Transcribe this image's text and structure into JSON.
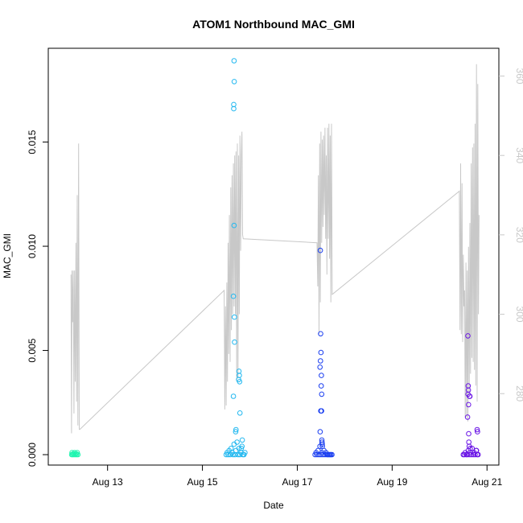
{
  "chart_data": {
    "type": "scatter",
    "title": "ATOM1 Northbound MAC_GMI",
    "xlabel": "Date",
    "ylabel": "MAC_GMI",
    "y2label": "",
    "xlim": [
      "2023-08-11T18:00",
      "2023-08-21T06:00"
    ],
    "ylim": [
      -0.0005,
      0.0195
    ],
    "y2lim": [
      262,
      367
    ],
    "x_ticks": [
      {
        "t": "2023-08-13T00:00",
        "label": "Aug 13"
      },
      {
        "t": "2023-08-15T00:00",
        "label": "Aug 15"
      },
      {
        "t": "2023-08-17T00:00",
        "label": "Aug 17"
      },
      {
        "t": "2023-08-19T00:00",
        "label": "Aug 19"
      },
      {
        "t": "2023-08-21T00:00",
        "label": "Aug 21"
      }
    ],
    "y_ticks": [
      0.0,
      0.005,
      0.01,
      0.015
    ],
    "y_tick_labels": [
      "0.000",
      "0.005",
      "0.010",
      "0.015"
    ],
    "y2_ticks": [
      280,
      300,
      320,
      340,
      360
    ],
    "grid": false,
    "legend": "none",
    "series": [
      {
        "color": "#1ff5b0",
        "points": [
          [
            "2023-08-12T06:00",
            0.0001
          ],
          [
            "2023-08-12T06:20",
            0.0
          ],
          [
            "2023-08-12T06:40",
            5e-05
          ],
          [
            "2023-08-12T07:00",
            0.0
          ],
          [
            "2023-08-12T07:20",
            0.0001
          ],
          [
            "2023-08-12T07:40",
            0.0
          ],
          [
            "2023-08-12T08:00",
            5e-05
          ],
          [
            "2023-08-12T08:20",
            0.0
          ],
          [
            "2023-08-12T08:40",
            0.0001
          ],
          [
            "2023-08-12T09:00",
            0.0
          ],
          [
            "2023-08-12T05:50",
            0.0
          ]
        ]
      },
      {
        "color": "#22b8f0",
        "points": [
          [
            "2023-08-15T12:00",
            0.0
          ],
          [
            "2023-08-15T12:30",
            0.0001
          ],
          [
            "2023-08-15T13:00",
            0.0
          ],
          [
            "2023-08-15T13:30",
            0.0002
          ],
          [
            "2023-08-15T14:00",
            0.0
          ],
          [
            "2023-08-15T14:30",
            0.0003
          ],
          [
            "2023-08-15T15:00",
            0.0001
          ],
          [
            "2023-08-15T15:30",
            0.0
          ],
          [
            "2023-08-15T16:00",
            0.0005
          ],
          [
            "2023-08-15T16:30",
            0.0
          ],
          [
            "2023-08-15T17:00",
            0.0002
          ],
          [
            "2023-08-15T17:30",
            0.0006
          ],
          [
            "2023-08-15T18:00",
            0.0
          ],
          [
            "2023-08-15T18:30",
            0.0003
          ],
          [
            "2023-08-15T19:00",
            0.0
          ],
          [
            "2023-08-15T19:30",
            0.0001
          ],
          [
            "2023-08-15T20:00",
            0.0004
          ],
          [
            "2023-08-15T20:30",
            0.0
          ],
          [
            "2023-08-15T16:00",
            0.0189
          ],
          [
            "2023-08-15T16:05",
            0.0179
          ],
          [
            "2023-08-15T15:50",
            0.0168
          ],
          [
            "2023-08-15T15:52",
            0.0166
          ],
          [
            "2023-08-15T16:00",
            0.011
          ],
          [
            "2023-08-15T15:40",
            0.0076
          ],
          [
            "2023-08-15T16:10",
            0.0066
          ],
          [
            "2023-08-15T16:15",
            0.0054
          ],
          [
            "2023-08-15T18:30",
            0.004
          ],
          [
            "2023-08-15T18:40",
            0.0038
          ],
          [
            "2023-08-15T18:20",
            0.0036
          ],
          [
            "2023-08-15T18:50",
            0.0035
          ],
          [
            "2023-08-15T15:40",
            0.0028
          ],
          [
            "2023-08-15T19:00",
            0.002
          ],
          [
            "2023-08-15T17:00",
            0.0012
          ],
          [
            "2023-08-15T16:50",
            0.0011
          ],
          [
            "2023-08-15T20:10",
            0.0007
          ],
          [
            "2023-08-15T19:40",
            0.0003
          ],
          [
            "2023-08-15T21:00",
            0.0
          ],
          [
            "2023-08-15T21:30",
            0.0001
          ]
        ]
      },
      {
        "color": "#1a3ef0",
        "points": [
          [
            "2023-08-17T09:00",
            0.0
          ],
          [
            "2023-08-17T09:30",
            0.0001
          ],
          [
            "2023-08-17T10:00",
            0.0
          ],
          [
            "2023-08-17T10:30",
            0.0002
          ],
          [
            "2023-08-17T11:00",
            0.0
          ],
          [
            "2023-08-17T11:30",
            0.0004
          ],
          [
            "2023-08-17T12:00",
            0.0
          ],
          [
            "2023-08-17T12:30",
            0.0001
          ],
          [
            "2023-08-17T13:00",
            0.0
          ],
          [
            "2023-08-17T13:30",
            0.0002
          ],
          [
            "2023-08-17T14:00",
            0.0
          ],
          [
            "2023-08-17T14:30",
            0.0001
          ],
          [
            "2023-08-17T15:00",
            0.0
          ],
          [
            "2023-08-17T15:30",
            0.0
          ],
          [
            "2023-08-17T16:00",
            0.0
          ],
          [
            "2023-08-17T16:30",
            0.0
          ],
          [
            "2023-08-17T17:00",
            0.0
          ],
          [
            "2023-08-17T17:30",
            0.0
          ],
          [
            "2023-08-17T11:40",
            0.0098
          ],
          [
            "2023-08-17T11:50",
            0.0058
          ],
          [
            "2023-08-17T12:00",
            0.0049
          ],
          [
            "2023-08-17T11:45",
            0.0045
          ],
          [
            "2023-08-17T11:30",
            0.0042
          ],
          [
            "2023-08-17T12:10",
            0.0038
          ],
          [
            "2023-08-17T12:05",
            0.0033
          ],
          [
            "2023-08-17T12:20",
            0.0029
          ],
          [
            "2023-08-17T11:55",
            0.0021
          ],
          [
            "2023-08-17T12:15",
            0.0021
          ],
          [
            "2023-08-17T11:35",
            0.0011
          ],
          [
            "2023-08-17T12:25",
            0.0007
          ],
          [
            "2023-08-17T12:30",
            0.0006
          ],
          [
            "2023-08-17T12:35",
            0.0005
          ],
          [
            "2023-08-17T12:40",
            0.0004
          ]
        ]
      },
      {
        "color": "#6a14e6",
        "points": [
          [
            "2023-08-20T12:00",
            0.0
          ],
          [
            "2023-08-20T12:30",
            0.0
          ],
          [
            "2023-08-20T13:00",
            0.0001
          ],
          [
            "2023-08-20T13:30",
            0.0
          ],
          [
            "2023-08-20T14:00",
            0.0
          ],
          [
            "2023-08-20T14:30",
            0.0002
          ],
          [
            "2023-08-20T15:00",
            0.0
          ],
          [
            "2023-08-20T15:30",
            0.0001
          ],
          [
            "2023-08-20T16:00",
            0.0
          ],
          [
            "2023-08-20T16:30",
            0.0003
          ],
          [
            "2023-08-20T17:00",
            0.0
          ],
          [
            "2023-08-20T17:30",
            0.0001
          ],
          [
            "2023-08-20T18:00",
            0.0
          ],
          [
            "2023-08-20T18:30",
            0.0002
          ],
          [
            "2023-08-20T19:00",
            0.0
          ],
          [
            "2023-08-20T19:30",
            0.0
          ],
          [
            "2023-08-20T14:20",
            0.0057
          ],
          [
            "2023-08-20T14:30",
            0.0033
          ],
          [
            "2023-08-20T14:35",
            0.0031
          ],
          [
            "2023-08-20T14:25",
            0.0029
          ],
          [
            "2023-08-20T15:10",
            0.0028
          ],
          [
            "2023-08-20T15:20",
            0.0028
          ],
          [
            "2023-08-20T14:40",
            0.0024
          ],
          [
            "2023-08-20T14:10",
            0.0018
          ],
          [
            "2023-08-20T19:00",
            0.0012
          ],
          [
            "2023-08-20T19:10",
            0.0011
          ],
          [
            "2023-08-20T14:45",
            0.001
          ],
          [
            "2023-08-20T14:50",
            0.0006
          ],
          [
            "2023-08-20T15:00",
            0.0004
          ],
          [
            "2023-08-20T15:30",
            0.0003
          ],
          [
            "2023-08-20T18:40",
            0.0002
          ]
        ]
      }
    ],
    "secondary_line": {
      "color": "#c8c8c8",
      "points": [
        [
          "2023-08-12T05:30",
          310
        ],
        [
          "2023-08-12T05:45",
          270
        ],
        [
          "2023-08-12T06:00",
          311
        ],
        [
          "2023-08-12T06:20",
          298
        ],
        [
          "2023-08-12T06:40",
          311
        ],
        [
          "2023-08-12T07:00",
          275
        ],
        [
          "2023-08-12T07:20",
          311
        ],
        [
          "2023-08-12T07:40",
          283
        ],
        [
          "2023-08-12T08:00",
          318
        ],
        [
          "2023-08-12T08:20",
          278
        ],
        [
          "2023-08-12T08:40",
          330
        ],
        [
          "2023-08-12T09:00",
          272
        ],
        [
          "2023-08-12T09:20",
          343
        ],
        [
          "2023-08-12T09:40",
          271
        ],
        [
          "2023-08-12T10:00",
          271
        ],
        [
          "2023-08-15T11:00",
          306
        ],
        [
          "2023-08-15T11:20",
          276
        ],
        [
          "2023-08-15T11:40",
          302
        ],
        [
          "2023-08-15T12:00",
          277
        ],
        [
          "2023-08-15T12:20",
          308
        ],
        [
          "2023-08-15T12:40",
          283
        ],
        [
          "2023-08-15T13:00",
          318
        ],
        [
          "2023-08-15T13:20",
          290
        ],
        [
          "2023-08-15T13:40",
          325
        ],
        [
          "2023-08-15T14:00",
          288
        ],
        [
          "2023-08-15T14:20",
          332
        ],
        [
          "2023-08-15T14:40",
          296
        ],
        [
          "2023-08-15T15:00",
          335
        ],
        [
          "2023-08-15T15:20",
          300
        ],
        [
          "2023-08-15T15:40",
          338
        ],
        [
          "2023-08-15T16:00",
          302
        ],
        [
          "2023-08-15T16:20",
          340
        ],
        [
          "2023-08-15T16:40",
          300
        ],
        [
          "2023-08-15T17:00",
          341
        ],
        [
          "2023-08-15T17:20",
          283
        ],
        [
          "2023-08-15T17:40",
          343
        ],
        [
          "2023-08-15T18:00",
          284
        ],
        [
          "2023-08-15T18:20",
          340
        ],
        [
          "2023-08-15T18:40",
          300
        ],
        [
          "2023-08-15T19:00",
          345
        ],
        [
          "2023-08-15T19:20",
          316
        ],
        [
          "2023-08-15T19:40",
          340
        ],
        [
          "2023-08-15T20:00",
          346
        ],
        [
          "2023-08-15T20:20",
          320
        ],
        [
          "2023-08-15T20:40",
          319
        ],
        [
          "2023-08-17T10:00",
          318
        ],
        [
          "2023-08-17T10:20",
          307
        ],
        [
          "2023-08-17T10:40",
          335
        ],
        [
          "2023-08-17T11:00",
          295
        ],
        [
          "2023-08-17T11:20",
          343
        ],
        [
          "2023-08-17T11:40",
          303
        ],
        [
          "2023-08-17T12:00",
          346
        ],
        [
          "2023-08-17T12:20",
          318
        ],
        [
          "2023-08-17T12:40",
          344
        ],
        [
          "2023-08-17T13:00",
          322
        ],
        [
          "2023-08-17T13:20",
          345
        ],
        [
          "2023-08-17T13:40",
          325
        ],
        [
          "2023-08-17T14:00",
          347
        ],
        [
          "2023-08-17T14:20",
          319
        ],
        [
          "2023-08-17T14:40",
          340
        ],
        [
          "2023-08-17T15:00",
          310
        ],
        [
          "2023-08-17T15:20",
          347
        ],
        [
          "2023-08-17T15:40",
          319
        ],
        [
          "2023-08-17T16:00",
          348
        ],
        [
          "2023-08-17T16:20",
          314
        ],
        [
          "2023-08-17T16:40",
          345
        ],
        [
          "2023-08-17T17:00",
          303
        ],
        [
          "2023-08-17T17:20",
          348
        ],
        [
          "2023-08-17T17:40",
          305
        ],
        [
          "2023-08-20T10:00",
          331
        ],
        [
          "2023-08-20T10:20",
          296
        ],
        [
          "2023-08-20T10:40",
          338
        ],
        [
          "2023-08-20T11:00",
          295
        ],
        [
          "2023-08-20T11:20",
          333
        ],
        [
          "2023-08-20T11:40",
          293
        ],
        [
          "2023-08-20T12:00",
          315
        ],
        [
          "2023-08-20T12:20",
          302
        ],
        [
          "2023-08-20T12:40",
          306
        ],
        [
          "2023-08-20T13:00",
          274
        ],
        [
          "2023-08-20T13:20",
          313
        ],
        [
          "2023-08-20T13:40",
          274
        ],
        [
          "2023-08-20T14:00",
          311
        ],
        [
          "2023-08-20T14:20",
          273
        ],
        [
          "2023-08-20T14:40",
          317
        ],
        [
          "2023-08-20T15:00",
          280
        ],
        [
          "2023-08-20T15:20",
          323
        ],
        [
          "2023-08-20T15:40",
          285
        ],
        [
          "2023-08-20T16:00",
          338
        ],
        [
          "2023-08-20T16:20",
          289
        ],
        [
          "2023-08-20T16:40",
          342
        ],
        [
          "2023-08-20T17:00",
          288
        ],
        [
          "2023-08-20T17:20",
          343
        ],
        [
          "2023-08-20T17:40",
          286
        ],
        [
          "2023-08-20T18:00",
          348
        ],
        [
          "2023-08-20T18:20",
          282
        ],
        [
          "2023-08-20T18:40",
          363
        ],
        [
          "2023-08-20T19:00",
          278
        ],
        [
          "2023-08-20T19:20",
          358
        ],
        [
          "2023-08-20T19:40",
          300
        ],
        [
          "2023-08-20T20:00",
          325
        ]
      ]
    }
  }
}
